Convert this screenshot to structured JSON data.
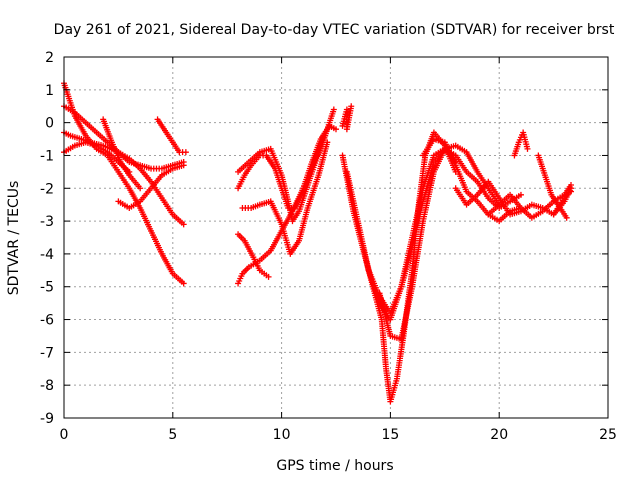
{
  "chart_data": {
    "type": "scatter",
    "title": "Day 261 of 2021, Sidereal Day-to-day VTEC variation (SDTVAR) for receiver brst",
    "xlabel": "GPS time / hours",
    "ylabel": "SDTVAR / TECUs",
    "xlim": [
      0,
      25
    ],
    "ylim": [
      -9,
      2
    ],
    "xticks": [
      "0",
      "5",
      "10",
      "15",
      "20",
      "25"
    ],
    "yticks": [
      "2",
      "1",
      "0",
      "-1",
      "-2",
      "-3",
      "-4",
      "-5",
      "-6",
      "-7",
      "-8",
      "-9"
    ],
    "grid": true,
    "marker": "+",
    "color": "#ff0000",
    "series": [
      {
        "x": [
          0.0,
          0.2,
          0.5,
          1.0,
          1.5,
          2.0,
          2.5,
          3.0,
          3.5,
          4.0,
          4.5,
          5.0,
          5.5
        ],
        "y": [
          1.2,
          0.8,
          0.2,
          -0.4,
          -0.8,
          -1.0,
          -1.5,
          -2.0,
          -2.6,
          -3.3,
          -4.0,
          -4.6,
          -4.9
        ]
      },
      {
        "x": [
          0.0,
          0.3,
          0.8,
          1.2,
          1.8,
          2.5,
          3.0,
          3.5,
          4.0,
          4.5,
          5.0,
          5.5
        ],
        "y": [
          -0.3,
          -0.4,
          -0.5,
          -0.6,
          -0.7,
          -0.9,
          -1.1,
          -1.4,
          -1.8,
          -2.3,
          -2.8,
          -3.1
        ]
      },
      {
        "x": [
          0.0,
          0.5,
          1.0,
          1.5,
          2.0,
          2.5,
          3.0,
          3.5,
          4.0,
          4.5,
          5.0,
          5.5
        ],
        "y": [
          0.5,
          0.3,
          0.0,
          -0.3,
          -0.6,
          -0.9,
          -1.2,
          -1.3,
          -1.4,
          -1.4,
          -1.3,
          -1.2
        ]
      },
      {
        "x": [
          0.0,
          0.5,
          1.0,
          1.5,
          2.0,
          2.5,
          3.0
        ],
        "y": [
          -0.9,
          -0.7,
          -0.6,
          -0.7,
          -0.9,
          -1.2,
          -1.5
        ]
      },
      {
        "x": [
          1.8,
          2.2,
          2.6,
          3.0,
          3.5
        ],
        "y": [
          0.1,
          -0.6,
          -1.2,
          -1.6,
          -2.0
        ]
      },
      {
        "x": [
          2.5,
          3.0,
          3.5,
          4.0,
          4.5,
          5.0,
          5.5
        ],
        "y": [
          -2.4,
          -2.6,
          -2.4,
          -2.0,
          -1.6,
          -1.4,
          -1.3
        ]
      },
      {
        "x": [
          4.3,
          4.7,
          5.0,
          5.3,
          5.6
        ],
        "y": [
          0.1,
          -0.3,
          -0.6,
          -0.9,
          -0.9
        ]
      },
      {
        "x": [
          8.0,
          8.2,
          8.5,
          9.0,
          9.5,
          10.0,
          10.5,
          11.0,
          11.5,
          12.0,
          12.4
        ],
        "y": [
          -4.9,
          -4.6,
          -4.4,
          -4.2,
          -3.9,
          -3.3,
          -2.7,
          -2.0,
          -1.2,
          -0.4,
          0.4
        ]
      },
      {
        "x": [
          8.0,
          8.3,
          8.6,
          9.0,
          9.3,
          9.7,
          10.0,
          10.3,
          10.6,
          11.0,
          11.4,
          11.8,
          12.2,
          12.5
        ],
        "y": [
          -2.0,
          -1.6,
          -1.3,
          -1.0,
          -1.0,
          -1.4,
          -2.0,
          -2.6,
          -2.6,
          -2.0,
          -1.2,
          -0.5,
          -0.1,
          -0.2
        ]
      },
      {
        "x": [
          8.0,
          8.5,
          9.0,
          9.5,
          10.0,
          10.3,
          10.5,
          10.8,
          11.2,
          11.6,
          12.0
        ],
        "y": [
          -1.5,
          -1.2,
          -0.9,
          -0.8,
          -1.6,
          -2.4,
          -3.0,
          -2.7,
          -1.9,
          -1.1,
          -0.4
        ]
      },
      {
        "x": [
          8.0,
          8.3,
          8.7,
          9.0,
          9.4
        ],
        "y": [
          -3.4,
          -3.6,
          -4.1,
          -4.5,
          -4.7
        ]
      },
      {
        "x": [
          8.2,
          8.6,
          9.0,
          9.5,
          10.0,
          10.4,
          10.8,
          11.2,
          11.7,
          12.1
        ],
        "y": [
          -2.6,
          -2.6,
          -2.5,
          -2.4,
          -3.1,
          -4.0,
          -3.6,
          -2.6,
          -1.6,
          -0.6
        ]
      },
      {
        "x": [
          12.8,
          13.0,
          13.0,
          13.2
        ],
        "y": [
          -0.1,
          0.4,
          -0.2,
          0.5
        ]
      },
      {
        "x": [
          12.8,
          13.3,
          13.8,
          14.2,
          14.6,
          14.8,
          15.0,
          15.3,
          15.6,
          16.0,
          16.3,
          16.6,
          17.0,
          17.5,
          18.0
        ],
        "y": [
          -1.0,
          -2.7,
          -4.0,
          -5.0,
          -6.0,
          -7.5,
          -8.5,
          -7.8,
          -6.5,
          -4.5,
          -2.5,
          -1.0,
          -0.3,
          -0.7,
          -1.5
        ]
      },
      {
        "x": [
          13.0,
          13.5,
          14.0,
          14.5,
          15.0,
          15.5,
          16.0,
          16.5,
          17.0,
          17.5,
          18.0
        ],
        "y": [
          -1.5,
          -3.0,
          -4.5,
          -5.5,
          -6.0,
          -5.0,
          -3.5,
          -2.0,
          -1.0,
          -0.8,
          -1.2
        ]
      },
      {
        "x": [
          14.0,
          14.5,
          15.0,
          15.5,
          16.0,
          16.5,
          17.0,
          17.5,
          18.0,
          18.5,
          19.0,
          19.5,
          20.0,
          20.5,
          21.0
        ],
        "y": [
          -4.5,
          -5.3,
          -5.8,
          -5.0,
          -3.8,
          -2.4,
          -1.2,
          -0.8,
          -1.0,
          -1.5,
          -1.8,
          -2.3,
          -2.6,
          -2.4,
          -2.2
        ]
      },
      {
        "x": [
          14.5,
          15.0,
          15.5,
          16.0,
          16.5,
          17.0,
          17.5,
          18.0,
          18.5,
          19.0,
          19.5,
          20.0
        ],
        "y": [
          -5.2,
          -6.5,
          -6.6,
          -5.0,
          -3.0,
          -1.5,
          -0.8,
          -0.7,
          -0.9,
          -1.5,
          -2.0,
          -2.5
        ]
      },
      {
        "x": [
          16.5,
          17.0,
          17.5,
          18.0,
          18.5,
          19.0,
          19.5,
          20.0,
          20.5,
          21.0
        ],
        "y": [
          -1.0,
          -0.5,
          -0.6,
          -1.3,
          -2.1,
          -2.4,
          -2.8,
          -3.0,
          -2.7,
          -2.6
        ]
      },
      {
        "x": [
          18.0,
          18.5,
          19.0,
          19.5,
          20.0,
          20.5,
          21.0,
          21.5,
          22.0,
          22.5,
          23.0,
          23.3
        ],
        "y": [
          -2.0,
          -2.5,
          -2.2,
          -1.8,
          -2.3,
          -2.8,
          -2.7,
          -2.5,
          -2.6,
          -2.8,
          -2.4,
          -2.0
        ]
      },
      {
        "x": [
          19.5,
          20.0,
          20.5,
          21.0,
          21.5,
          22.0,
          22.5,
          23.0,
          23.3
        ],
        "y": [
          -2.8,
          -2.5,
          -2.2,
          -2.6,
          -2.9,
          -2.7,
          -2.4,
          -2.2,
          -1.9
        ]
      },
      {
        "x": [
          20.7,
          20.9,
          21.1,
          21.3
        ],
        "y": [
          -1.0,
          -0.6,
          -0.3,
          -0.8
        ]
      },
      {
        "x": [
          21.8,
          22.1,
          22.4,
          22.8,
          23.1
        ],
        "y": [
          -1.0,
          -1.6,
          -2.2,
          -2.6,
          -2.9
        ]
      },
      {
        "x": [
          22.5,
          22.8,
          23.1,
          23.3
        ],
        "y": [
          -2.8,
          -2.5,
          -2.2,
          -2.1
        ]
      }
    ]
  }
}
